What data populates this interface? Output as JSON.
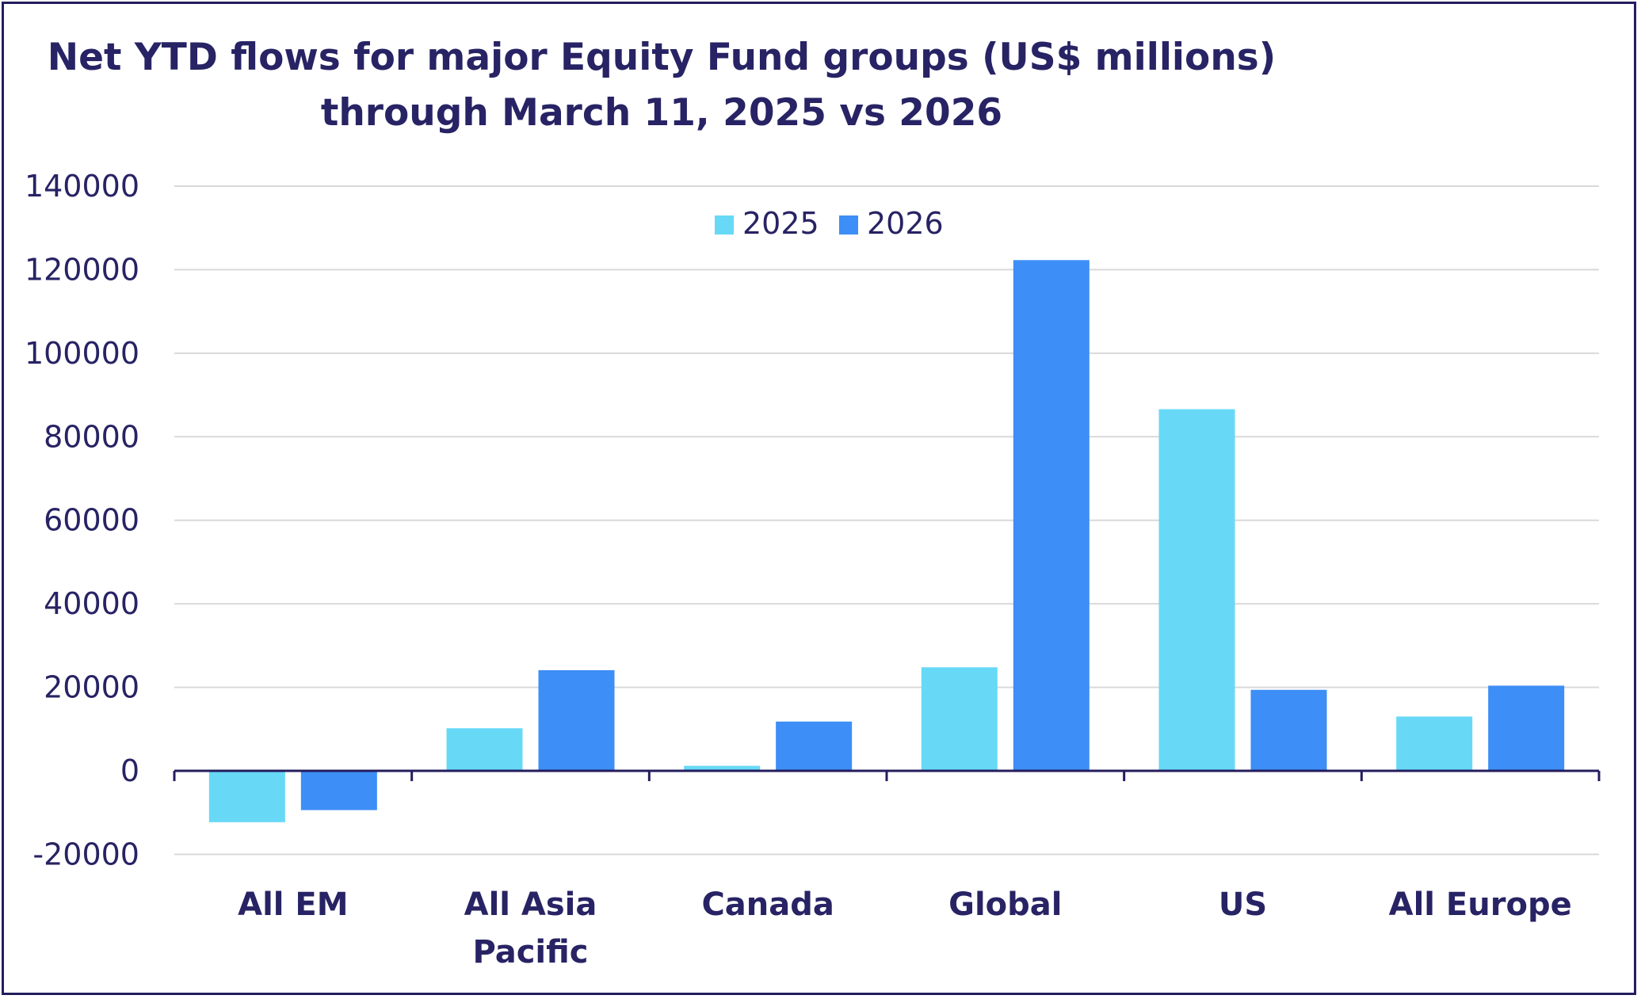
{
  "chart_data": {
    "type": "bar",
    "title_lines": [
      "Net YTD flows for major Equity Fund groups (US$ millions)",
      "through March 11, 2025 vs 2026"
    ],
    "categories": [
      "All EM",
      "All Asia\nPacific",
      "Canada",
      "Global",
      "US",
      "All Europe"
    ],
    "series": [
      {
        "name": "2025",
        "color": "#67d9f7",
        "values": [
          -12300,
          10200,
          1200,
          24800,
          86600,
          13000
        ]
      },
      {
        "name": "2026",
        "color": "#3d8ef6",
        "values": [
          -9400,
          24100,
          11800,
          122300,
          19400,
          20400
        ]
      }
    ],
    "ylim": [
      -20000,
      140000
    ],
    "yticks": [
      -20000,
      0,
      20000,
      40000,
      60000,
      80000,
      100000,
      120000,
      140000
    ],
    "grid": true,
    "legend_position": "top-center",
    "colors": {
      "text": "#272364",
      "grid": "#d9d9d9",
      "axis": "#241d5e",
      "border": "#241d5e"
    }
  }
}
